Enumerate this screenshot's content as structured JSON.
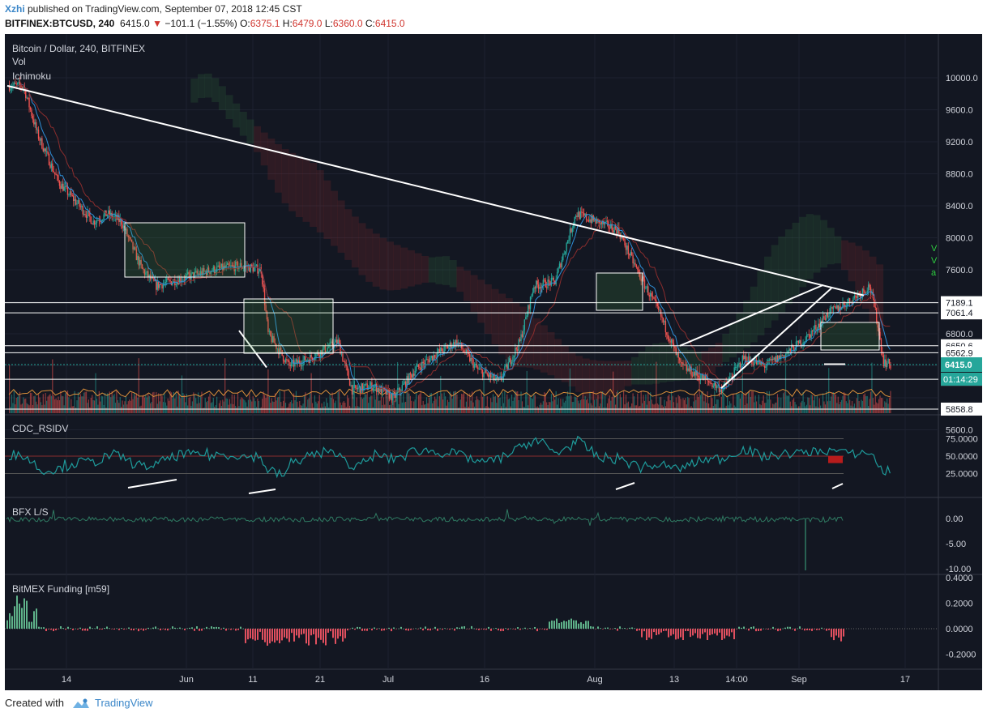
{
  "header": {
    "author": "Xzhi",
    "published": " published on TradingView.com, September 07, 2018 12:45 CST",
    "symbol": "BITFINEX:BTCUSD, 240",
    "last": "6415.0",
    "change": "−101.1 (−1.55%)",
    "o_label": "O:",
    "o": "6375.1",
    "h_label": "H:",
    "h": "6479.0",
    "l_label": "L:",
    "l": "6360.0",
    "c_label": "C:",
    "c": "6415.0"
  },
  "chart": {
    "title": "Bitcoin / Dollar, 240, BITFINEX",
    "indicators": [
      "Vol",
      "Ichimoku"
    ],
    "price_axis": [
      "10000.0",
      "9600.0",
      "9200.0",
      "8800.0",
      "8400.0",
      "8000.0",
      "7600.0",
      "6800.0",
      "5600.0"
    ],
    "level_labels": [
      "7189.1",
      "7061.4",
      "6650.6",
      "6562.9",
      "6231.8",
      "5858.8"
    ],
    "current_price": "6415.0",
    "countdown": "01:14:29",
    "signal_marks": [
      "V",
      "V",
      "a"
    ],
    "x_labels": [
      "14",
      "Jun",
      "11",
      "21",
      "Jul",
      "16",
      "Aug",
      "13",
      "14:00",
      "Sep",
      "17"
    ]
  },
  "rsi": {
    "title": "CDC_RSIDV",
    "ticks": [
      "75.0000",
      "50.0000",
      "25.0000"
    ]
  },
  "ls": {
    "title": "BFX L/S",
    "ticks": [
      "0.00",
      "-5.00",
      "-10.00"
    ]
  },
  "funding": {
    "title": "BitMEX Funding [m59]",
    "ticks": [
      "0.4000",
      "0.2000",
      "0.0000",
      "-0.2000"
    ]
  },
  "footer": {
    "created": "Created with",
    "brand": "TradingView"
  },
  "colors": {
    "bg": "#131722",
    "up": "#26a69a",
    "down": "#ef5350",
    "fund_pos": "#5fb38a",
    "fund_neg": "#e0505f",
    "highlight": "#d0362f"
  },
  "chart_data": {
    "type": "line",
    "title": "Bitcoin / Dollar, 240, BITFINEX",
    "x_ticks": [
      "14",
      "Jun",
      "11",
      "21",
      "Jul",
      "16",
      "Aug",
      "13",
      "14:00",
      "Sep",
      "17"
    ],
    "price_ylim": [
      5600,
      10000
    ],
    "price_path": [
      {
        "x": "May 06",
        "y": 9900
      },
      {
        "x": "May 08",
        "y": 9300
      },
      {
        "x": "May 11",
        "y": 8700
      },
      {
        "x": "May 13",
        "y": 8500
      },
      {
        "x": "May 16",
        "y": 8200
      },
      {
        "x": "May 18",
        "y": 8300
      },
      {
        "x": "May 20",
        "y": 8200
      },
      {
        "x": "May 23",
        "y": 7600
      },
      {
        "x": "May 25",
        "y": 7400
      },
      {
        "x": "May 29",
        "y": 7500
      },
      {
        "x": "Jun 02",
        "y": 7600
      },
      {
        "x": "Jun 06",
        "y": 7650
      },
      {
        "x": "Jun 09",
        "y": 7600
      },
      {
        "x": "Jun 10",
        "y": 6800
      },
      {
        "x": "Jun 13",
        "y": 6400
      },
      {
        "x": "Jun 16",
        "y": 6500
      },
      {
        "x": "Jun 20",
        "y": 6700
      },
      {
        "x": "Jun 22",
        "y": 6100
      },
      {
        "x": "Jun 25",
        "y": 6150
      },
      {
        "x": "Jun 28",
        "y": 6000
      },
      {
        "x": "Jul 01",
        "y": 6350
      },
      {
        "x": "Jul 04",
        "y": 6550
      },
      {
        "x": "Jul 07",
        "y": 6700
      },
      {
        "x": "Jul 10",
        "y": 6350
      },
      {
        "x": "Jul 13",
        "y": 6200
      },
      {
        "x": "Jul 16",
        "y": 6700
      },
      {
        "x": "Jul 18",
        "y": 7400
      },
      {
        "x": "Jul 21",
        "y": 7450
      },
      {
        "x": "Jul 24",
        "y": 8300
      },
      {
        "x": "Jul 27",
        "y": 8200
      },
      {
        "x": "Jul 30",
        "y": 8100
      },
      {
        "x": "Aug 02",
        "y": 7550
      },
      {
        "x": "Aug 05",
        "y": 7050
      },
      {
        "x": "Aug 08",
        "y": 6400
      },
      {
        "x": "Aug 11",
        "y": 6250
      },
      {
        "x": "Aug 14",
        "y": 6100
      },
      {
        "x": "Aug 17",
        "y": 6500
      },
      {
        "x": "Aug 20",
        "y": 6400
      },
      {
        "x": "Aug 23",
        "y": 6550
      },
      {
        "x": "Aug 26",
        "y": 6750
      },
      {
        "x": "Aug 29",
        "y": 7050
      },
      {
        "x": "Sep 01",
        "y": 7200
      },
      {
        "x": "Sep 04",
        "y": 7400
      },
      {
        "x": "Sep 05",
        "y": 7000
      },
      {
        "x": "Sep 06",
        "y": 6450
      },
      {
        "x": "Sep 07",
        "y": 6415
      }
    ],
    "horizontal_levels": [
      7189.1,
      7061.4,
      6650.6,
      6562.9,
      6231.8,
      5858.8
    ],
    "rsi_ylim": [
      0,
      100
    ],
    "rsi_ticks": [
      75,
      50,
      25
    ],
    "ls_ticks": [
      0,
      -5,
      -10
    ],
    "funding_ticks": [
      0.4,
      0.2,
      0.0,
      -0.2
    ]
  }
}
